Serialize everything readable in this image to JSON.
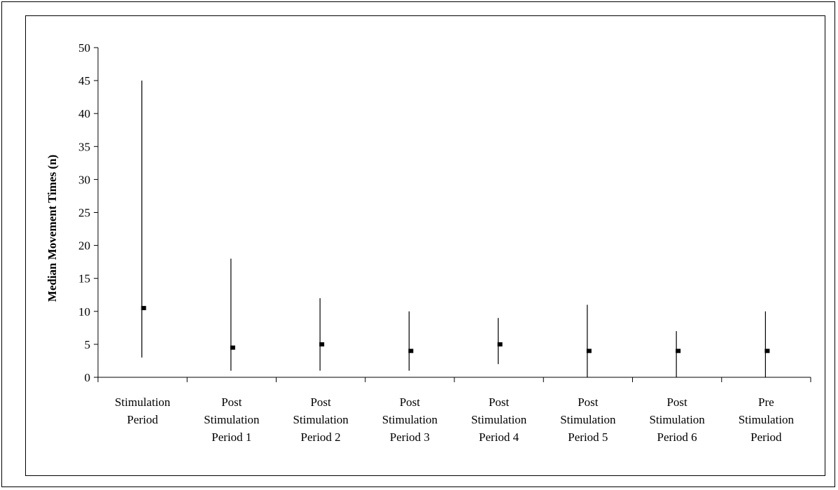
{
  "chart_data": {
    "type": "range",
    "ylabel": "Median Movement Times (n)",
    "xlabel": "",
    "title": "",
    "ylim": [
      0,
      50
    ],
    "yticks": [
      0,
      5,
      10,
      15,
      20,
      25,
      30,
      35,
      40,
      45,
      50
    ],
    "categories": [
      [
        "Stimulation",
        "Period"
      ],
      [
        "Post",
        "Stimulation",
        "Period 1"
      ],
      [
        "Post",
        "Stimulation",
        "Period 2"
      ],
      [
        "Post",
        "Stimulation",
        "Period 3"
      ],
      [
        "Post",
        "Stimulation",
        "Period 4"
      ],
      [
        "Post",
        "Stimulation",
        "Period 5"
      ],
      [
        "Post",
        "Stimulation",
        "Period 6"
      ],
      [
        "Pre",
        "Stimulation",
        "Period"
      ]
    ],
    "series": [
      {
        "median": 10.5,
        "min": 3,
        "max": 45
      },
      {
        "median": 4.5,
        "min": 1,
        "max": 18
      },
      {
        "median": 5,
        "min": 1,
        "max": 12
      },
      {
        "median": 4,
        "min": 1,
        "max": 10
      },
      {
        "median": 5,
        "min": 2,
        "max": 9
      },
      {
        "median": 4,
        "min": 0,
        "max": 11
      },
      {
        "median": 4,
        "min": 0,
        "max": 7
      },
      {
        "median": 4,
        "min": 0,
        "max": 10
      }
    ],
    "grid": false,
    "legend": "none"
  }
}
